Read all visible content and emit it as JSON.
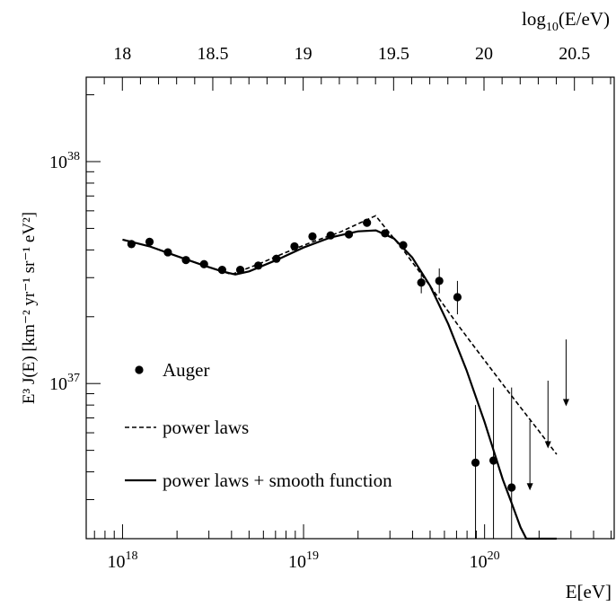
{
  "chart_data": {
    "type": "scatter",
    "x_label": "E[eV]",
    "y_label": "E³ J(E) [km⁻² yr⁻¹ sr⁻¹ eV²]",
    "top_axis_label": "log10(E/eV)",
    "x_scale": "log",
    "y_scale": "log",
    "xlim": [
      6.3e+17,
      5.2e+20
    ],
    "ylim": [
      2e+36,
      2.4e+38
    ],
    "top_xlim": [
      17.8,
      20.72
    ],
    "x_ticks": [
      {
        "value": 1e+18,
        "base": "10",
        "exp": "18"
      },
      {
        "value": 1e+19,
        "base": "10",
        "exp": "19"
      },
      {
        "value": 1e+20,
        "base": "10",
        "exp": "20"
      }
    ],
    "y_ticks": [
      {
        "value": 1e+37,
        "base": "10",
        "exp": "37"
      },
      {
        "value": 1e+38,
        "base": "10",
        "exp": "38"
      }
    ],
    "top_ticks": [
      "18",
      "18.5",
      "19",
      "19.5",
      "20",
      "20.5"
    ],
    "series": [
      {
        "name": "Auger",
        "style": "points",
        "points": [
          {
            "x": 1.12e+18,
            "y": 4.25e+37
          },
          {
            "x": 1.41e+18,
            "y": 4.35e+37
          },
          {
            "x": 1.78e+18,
            "y": 3.9e+37
          },
          {
            "x": 2.24e+18,
            "y": 3.6e+37
          },
          {
            "x": 2.82e+18,
            "y": 3.45e+37
          },
          {
            "x": 3.55e+18,
            "y": 3.25e+37
          },
          {
            "x": 4.47e+18,
            "y": 3.25e+37
          },
          {
            "x": 5.62e+18,
            "y": 3.4e+37
          },
          {
            "x": 7.08e+18,
            "y": 3.65e+37
          },
          {
            "x": 8.91e+18,
            "y": 4.15e+37
          },
          {
            "x": 1.12e+19,
            "y": 4.6e+37
          },
          {
            "x": 1.41e+19,
            "y": 4.65e+37
          },
          {
            "x": 1.78e+19,
            "y": 4.7e+37
          },
          {
            "x": 2.24e+19,
            "y": 5.3e+37
          },
          {
            "x": 2.82e+19,
            "y": 4.75e+37
          },
          {
            "x": 3.55e+19,
            "y": 4.2e+37
          },
          {
            "x": 4.47e+19,
            "y": 2.85e+37,
            "err_low": 2.55e+37,
            "err_high": 3.15e+37
          },
          {
            "x": 5.62e+19,
            "y": 2.9e+37,
            "err_low": 2.55e+37,
            "err_high": 3.3e+37
          },
          {
            "x": 7.08e+19,
            "y": 2.45e+37,
            "err_low": 2.05e+37,
            "err_high": 2.9e+37
          },
          {
            "x": 8.91e+19,
            "y": 4.4e+36,
            "err_low": 2e+36,
            "err_high": 8e+36
          },
          {
            "x": 1.12e+20,
            "y": 4.5e+36,
            "err_low": 2e+36,
            "err_high": 9.6e+36
          },
          {
            "x": 1.41e+20,
            "y": 3.4e+36,
            "err_low": 2e+36,
            "err_high": 9.6e+36
          }
        ],
        "upper_limits": [
          {
            "x": 1.78e+20,
            "top": 6.8e+36,
            "y": 3.3e+36
          },
          {
            "x": 2.24e+20,
            "top": 1.03e+37,
            "y": 5.1e+36
          },
          {
            "x": 2.82e+20,
            "top": 1.58e+37,
            "y": 7.9e+36
          }
        ]
      },
      {
        "name": "power laws",
        "style": "dashed",
        "points": [
          {
            "x": 1e+18,
            "y": 4.45e+37
          },
          {
            "x": 1.41e+18,
            "y": 4.15e+37
          },
          {
            "x": 2e+18,
            "y": 3.75e+37
          },
          {
            "x": 2.82e+18,
            "y": 3.4e+37
          },
          {
            "x": 4e+18,
            "y": 3.1e+37
          },
          {
            "x": 5.62e+18,
            "y": 3.45e+37
          },
          {
            "x": 8e+18,
            "y": 3.9e+37
          },
          {
            "x": 1.12e+19,
            "y": 4.35e+37
          },
          {
            "x": 1.58e+19,
            "y": 4.8e+37
          },
          {
            "x": 2.5e+19,
            "y": 5.7e+37
          },
          {
            "x": 3.55e+19,
            "y": 4e+37
          },
          {
            "x": 5e+19,
            "y": 2.75e+37
          },
          {
            "x": 7.08e+19,
            "y": 1.85e+37
          },
          {
            "x": 1e+20,
            "y": 1.27e+37
          },
          {
            "x": 1.41e+20,
            "y": 8.8e+36
          },
          {
            "x": 2e+20,
            "y": 6.1e+36
          },
          {
            "x": 2.5e+20,
            "y": 4.8e+36
          }
        ]
      },
      {
        "name": "power laws + smooth function",
        "style": "solid",
        "points": [
          {
            "x": 1e+18,
            "y": 4.45e+37
          },
          {
            "x": 1.41e+18,
            "y": 4.15e+37
          },
          {
            "x": 2e+18,
            "y": 3.75e+37
          },
          {
            "x": 2.82e+18,
            "y": 3.4e+37
          },
          {
            "x": 3.55e+18,
            "y": 3.2e+37
          },
          {
            "x": 4.2e+18,
            "y": 3.1e+37
          },
          {
            "x": 5e+18,
            "y": 3.2e+37
          },
          {
            "x": 7.08e+18,
            "y": 3.6e+37
          },
          {
            "x": 1e+19,
            "y": 4.1e+37
          },
          {
            "x": 1.41e+19,
            "y": 4.55e+37
          },
          {
            "x": 2e+19,
            "y": 4.85e+37
          },
          {
            "x": 2.51e+19,
            "y": 4.9e+37
          },
          {
            "x": 3.16e+19,
            "y": 4.5e+37
          },
          {
            "x": 3.98e+19,
            "y": 3.7e+37
          },
          {
            "x": 5.01e+19,
            "y": 2.75e+37
          },
          {
            "x": 6.31e+19,
            "y": 1.85e+37
          },
          {
            "x": 7.94e+19,
            "y": 1.15e+37
          },
          {
            "x": 1e+20,
            "y": 6.7e+36
          },
          {
            "x": 1.26e+20,
            "y": 3.7e+36
          },
          {
            "x": 1.41e+20,
            "y": 2.9e+36
          },
          {
            "x": 1.58e+20,
            "y": 2.25e+36
          },
          {
            "x": 1.7e+20,
            "y": 2e+36
          },
          {
            "x": 2.5e+20,
            "y": 2e+36
          }
        ]
      }
    ],
    "legend": {
      "position": "bottom-left",
      "items": [
        {
          "label": "Auger",
          "style": "points"
        },
        {
          "label": "power laws",
          "style": "dashed"
        },
        {
          "label": "power laws + smooth function",
          "style": "solid"
        }
      ]
    }
  }
}
